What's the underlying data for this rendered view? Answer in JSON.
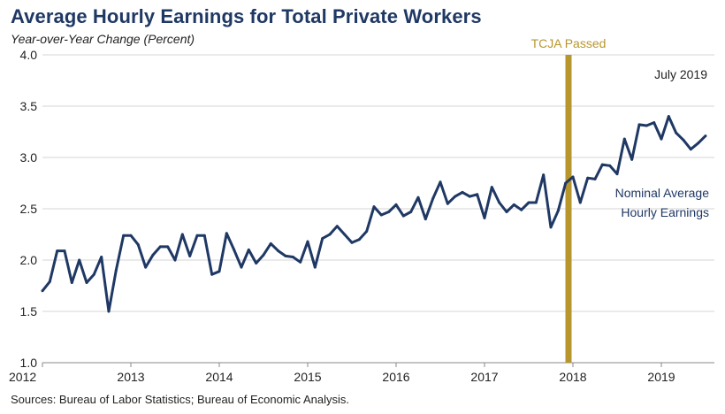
{
  "header": {
    "title": "Average Hourly Earnings for Total Private Workers",
    "subtitle": "Year-over-Year Change (Percent)"
  },
  "footer": {
    "source": "Sources: Bureau of Labor Statistics; Bureau of Economic Analysis."
  },
  "colors": {
    "series": "#1f3864",
    "marker": "#b8962e",
    "grid": "#d4d4d4",
    "text": "#222222"
  },
  "chart_data": {
    "type": "line",
    "title": "Average Hourly Earnings for Total Private Workers",
    "ylabel": "Year-over-Year Change (Percent)",
    "xlabel": "",
    "ylim": [
      1.0,
      4.0
    ],
    "yticks": [
      1.0,
      1.5,
      2.0,
      2.5,
      3.0,
      3.5,
      4.0
    ],
    "ytick_labels": [
      "1.0",
      "1.5",
      "2.0",
      "2.5",
      "3.0",
      "3.5",
      "4.0"
    ],
    "xlim": [
      2012.0,
      2019.6
    ],
    "xticks": [
      2012,
      2013,
      2014,
      2015,
      2016,
      2017,
      2018,
      2019
    ],
    "xtick_labels": [
      "2012",
      "2013",
      "2014",
      "2015",
      "2016",
      "2017",
      "2018",
      "2019"
    ],
    "grid": "horizontal",
    "series": [
      {
        "name": "Nominal Average Hourly Earnings",
        "start": "2012-01",
        "frequency": "monthly",
        "values": [
          1.7,
          1.79,
          2.09,
          2.09,
          1.78,
          2.0,
          1.78,
          1.86,
          2.03,
          1.5,
          1.9,
          2.24,
          2.24,
          2.15,
          1.93,
          2.05,
          2.13,
          2.13,
          2.0,
          2.25,
          2.04,
          2.24,
          2.24,
          1.86,
          1.89,
          2.26,
          2.1,
          1.93,
          2.1,
          1.97,
          2.05,
          2.16,
          2.09,
          2.04,
          2.03,
          1.98,
          2.18,
          1.93,
          2.21,
          2.25,
          2.33,
          2.25,
          2.17,
          2.2,
          2.28,
          2.52,
          2.44,
          2.47,
          2.54,
          2.43,
          2.47,
          2.61,
          2.4,
          2.6,
          2.76,
          2.55,
          2.62,
          2.66,
          2.62,
          2.64,
          2.41,
          2.71,
          2.56,
          2.47,
          2.54,
          2.49,
          2.56,
          2.56,
          2.83,
          2.32,
          2.48,
          2.75,
          2.81,
          2.56,
          2.8,
          2.79,
          2.93,
          2.92,
          2.84,
          3.18,
          2.98,
          3.32,
          3.31,
          3.34,
          3.18,
          3.4,
          3.24,
          3.17,
          3.08,
          3.14,
          3.21
        ]
      }
    ],
    "annotations": [
      {
        "type": "vertical-line",
        "x": 2017.95,
        "label": "TCJA Passed"
      },
      {
        "type": "text",
        "label": "July 2019",
        "placement": "top-right"
      },
      {
        "type": "series-label",
        "series": 0,
        "lines": [
          "Nominal Average",
          "Hourly Earnings"
        ]
      }
    ]
  }
}
